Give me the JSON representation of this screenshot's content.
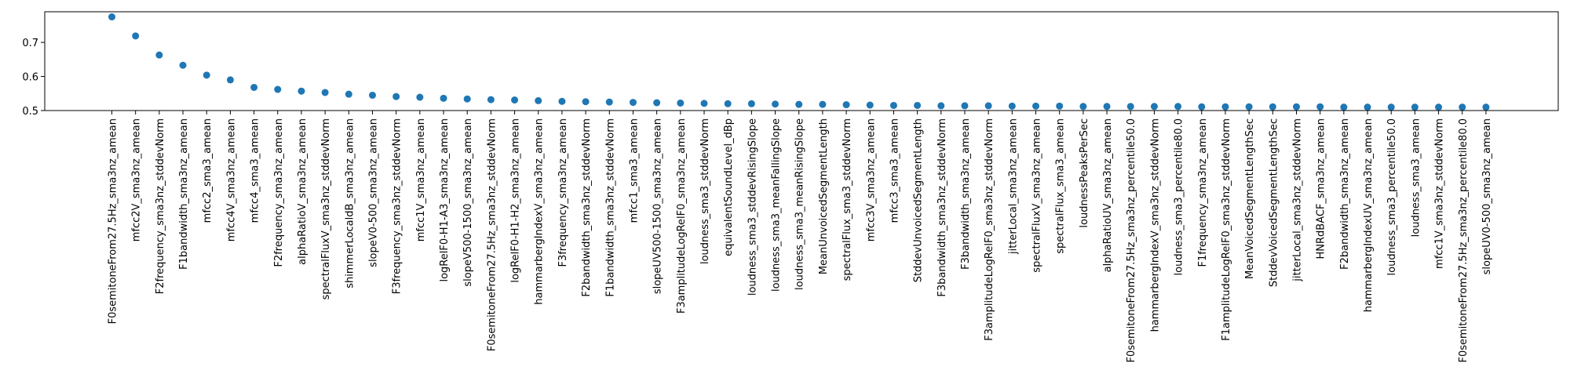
{
  "chart_data": {
    "type": "scatter",
    "title": "",
    "xlabel": "",
    "ylabel": "",
    "ylim": [
      0.5,
      0.79
    ],
    "yticks": [
      0.5,
      0.6,
      0.7
    ],
    "yticklabels": [
      "0.5",
      "0.6",
      "0.7"
    ],
    "grid": false,
    "legend": "none",
    "marker_color": "#1f77b4",
    "categories": [
      "F0semitoneFrom27.5Hz_sma3nz_amean",
      "mfcc2V_sma3nz_amean",
      "F2frequency_sma3nz_stddevNorm",
      "F1bandwidth_sma3nz_amean",
      "mfcc2_sma3_amean",
      "mfcc4V_sma3nz_amean",
      "mfcc4_sma3_amean",
      "F2frequency_sma3nz_amean",
      "alphaRatioV_sma3nz_amean",
      "spectralFluxV_sma3nz_stddevNorm",
      "shimmerLocaldB_sma3nz_amean",
      "slopeV0-500_sma3nz_amean",
      "F3frequency_sma3nz_stddevNorm",
      "mfcc1V_sma3nz_amean",
      "logRelF0-H1-A3_sma3nz_amean",
      "slopeV500-1500_sma3nz_amean",
      "F0semitoneFrom27.5Hz_sma3nz_stddevNorm",
      "logRelF0-H1-H2_sma3nz_amean",
      "hammarbergIndexV_sma3nz_amean",
      "F3frequency_sma3nz_amean",
      "F2bandwidth_sma3nz_stddevNorm",
      "F1bandwidth_sma3nz_stddevNorm",
      "mfcc1_sma3_amean",
      "slopeUV500-1500_sma3nz_amean",
      "F3amplitudeLogRelF0_sma3nz_amean",
      "loudness_sma3_stddevNorm",
      "equivalentSoundLevel_dBp",
      "loudness_sma3_stddevRisingSlope",
      "loudness_sma3_meanFallingSlope",
      "loudness_sma3_meanRisingSlope",
      "MeanUnvoicedSegmentLength",
      "spectralFlux_sma3_stddevNorm",
      "mfcc3V_sma3nz_amean",
      "mfcc3_sma3_amean",
      "StddevUnvoicedSegmentLength",
      "F3bandwidth_sma3nz_stddevNorm",
      "F3bandwidth_sma3nz_amean",
      "F3amplitudeLogRelF0_sma3nz_stddevNorm",
      "jitterLocal_sma3nz_amean",
      "spectralFluxV_sma3nz_amean",
      "spectralFlux_sma3_amean",
      "loudnessPeaksPerSec",
      "alphaRatioUV_sma3nz_amean",
      "F0semitoneFrom27.5Hz_sma3nz_percentile50.0",
      "hammarbergIndexV_sma3nz_stddevNorm",
      "loudness_sma3_percentile80.0",
      "F1frequency_sma3nz_amean",
      "F1amplitudeLogRelF0_sma3nz_stddevNorm",
      "MeanVoicedSegmentLengthSec",
      "StddevVoicedSegmentLengthSec",
      "jitterLocal_sma3nz_stddevNorm",
      "HNRdBACF_sma3nz_amean",
      "F2bandwidth_sma3nz_amean",
      "hammarbergIndexUV_sma3nz_amean",
      "loudness_sma3_percentile50.0",
      "loudness_sma3_amean",
      "mfcc1V_sma3nz_stddevNorm",
      "F0semitoneFrom27.5Hz_sma3nz_percentile80.0",
      "slopeUV0-500_sma3nz_amean"
    ],
    "values": [
      0.775,
      0.719,
      0.663,
      0.633,
      0.604,
      0.59,
      0.568,
      0.562,
      0.557,
      0.553,
      0.548,
      0.545,
      0.541,
      0.539,
      0.536,
      0.534,
      0.532,
      0.531,
      0.529,
      0.527,
      0.526,
      0.525,
      0.524,
      0.523,
      0.522,
      0.521,
      0.52,
      0.52,
      0.519,
      0.518,
      0.518,
      0.517,
      0.516,
      0.515,
      0.515,
      0.514,
      0.514,
      0.514,
      0.513,
      0.513,
      0.513,
      0.512,
      0.512,
      0.512,
      0.512,
      0.512,
      0.511,
      0.511,
      0.511,
      0.511,
      0.511,
      0.511,
      0.51,
      0.51,
      0.51,
      0.51,
      0.51,
      0.51,
      0.51
    ]
  }
}
